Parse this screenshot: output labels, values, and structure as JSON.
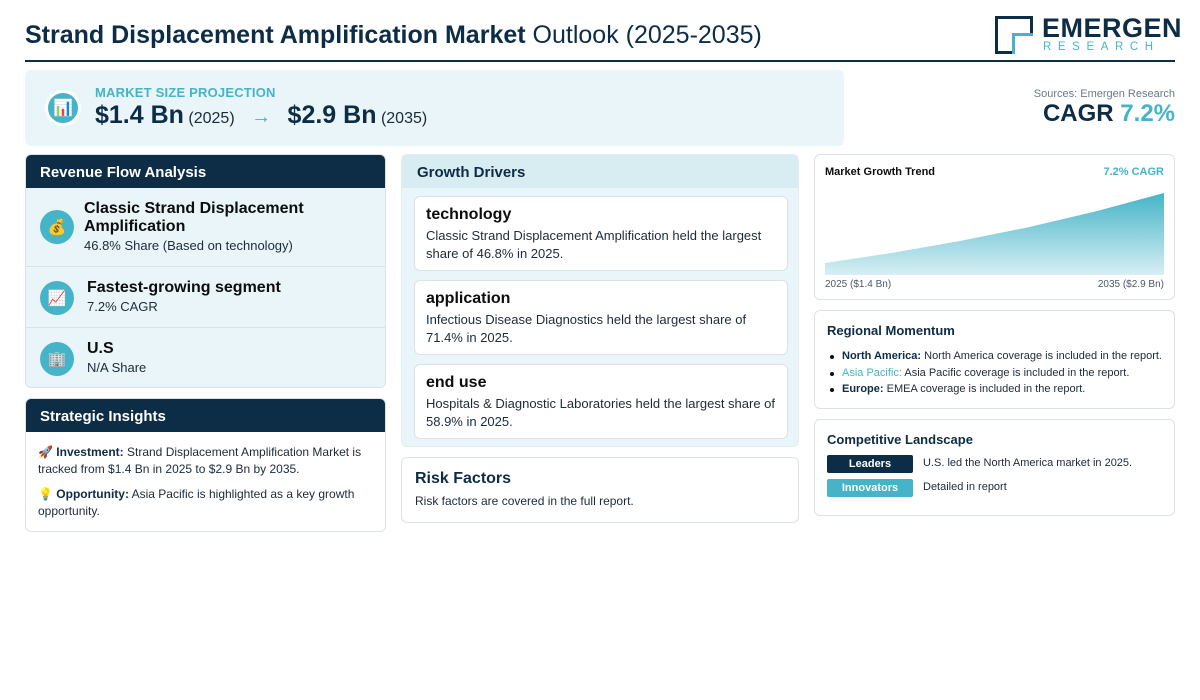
{
  "header": {
    "title_bold": "Strand Displacement Amplification Market",
    "title_rest": "Outlook (2025-2035)",
    "logo_main": "EMERGEN",
    "logo_sub": "RESEARCH"
  },
  "banner": {
    "label": "MARKET SIZE PROJECTION",
    "start_value": "$1.4 Bn",
    "start_year": "(2025)",
    "arrow": "→",
    "end_value": "$2.9 Bn",
    "end_year": "(2035)",
    "icon": "bar-chart-icon"
  },
  "sources": "Sources: Emergen Research",
  "cagr": {
    "label": "CAGR",
    "value": "7.2%"
  },
  "revenue_flow": {
    "title": "Revenue Flow Analysis",
    "items": [
      {
        "icon": "money-bag-icon",
        "glyph": "💰",
        "title": "Classic Strand Displacement Amplification",
        "sub": "46.8% Share (Based on technology)"
      },
      {
        "icon": "trend-up-icon",
        "glyph": "📈",
        "title": "Fastest-growing segment",
        "sub": "7.2% CAGR"
      },
      {
        "icon": "building-icon",
        "glyph": "🏢",
        "title": "U.S",
        "sub": "N/A Share"
      }
    ]
  },
  "strategic_insights": {
    "title": "Strategic Insights",
    "items": [
      {
        "glyph": "🚀",
        "label": "Investment:",
        "text": "Strand Displacement Amplification Market is tracked from $1.4 Bn in 2025 to $2.9 Bn by 2035."
      },
      {
        "glyph": "💡",
        "label": "Opportunity:",
        "text": "Asia Pacific is highlighted as a key growth opportunity."
      }
    ]
  },
  "growth_drivers": {
    "title": "Growth Drivers",
    "cards": [
      {
        "title": "technology",
        "text": "Classic Strand Displacement Amplification held the largest share of 46.8% in 2025."
      },
      {
        "title": "application",
        "text": "Infectious Disease Diagnostics held the largest share of 71.4% in 2025."
      },
      {
        "title": "end use",
        "text": "Hospitals & Diagnostic Laboratories held the largest share of 58.9% in 2025."
      }
    ]
  },
  "risk_factors": {
    "title": "Risk Factors",
    "text": "Risk factors are covered in the full report."
  },
  "market_growth_trend": {
    "title": "Market Growth Trend",
    "cagr_label": "7.2% CAGR",
    "start_label": "2025 ($1.4 Bn)",
    "end_label": "2035 ($2.9 Bn)"
  },
  "chart_data": {
    "type": "area",
    "title": "Market Growth Trend",
    "x": [
      2025,
      2035
    ],
    "values": [
      1.4,
      2.9
    ],
    "xlabel": "",
    "ylabel": "",
    "grid": false,
    "colors": {
      "fill_top": "#45b4c8",
      "fill_bottom": "#d8eff4"
    }
  },
  "regional_momentum": {
    "title": "Regional Momentum",
    "items": [
      {
        "region": "North America:",
        "text": "North America coverage is included in the report.",
        "accent": false
      },
      {
        "region": "Asia Pacific:",
        "text": "Asia Pacific coverage is included in the report.",
        "accent": true
      },
      {
        "region": "Europe:",
        "text": "EMEA coverage is included in the report.",
        "accent": false
      }
    ]
  },
  "competitive_landscape": {
    "title": "Competitive Landscape",
    "rows": [
      {
        "badge": "Leaders",
        "color": "#0d2c45",
        "text": "U.S. led the North America market in 2025."
      },
      {
        "badge": "Innovators",
        "color": "#45b4c8",
        "text": "Detailed in report"
      }
    ]
  },
  "colors": {
    "navy": "#0d2c45",
    "accent": "#45b4c8",
    "panel_bg": "#e9f5f8"
  }
}
